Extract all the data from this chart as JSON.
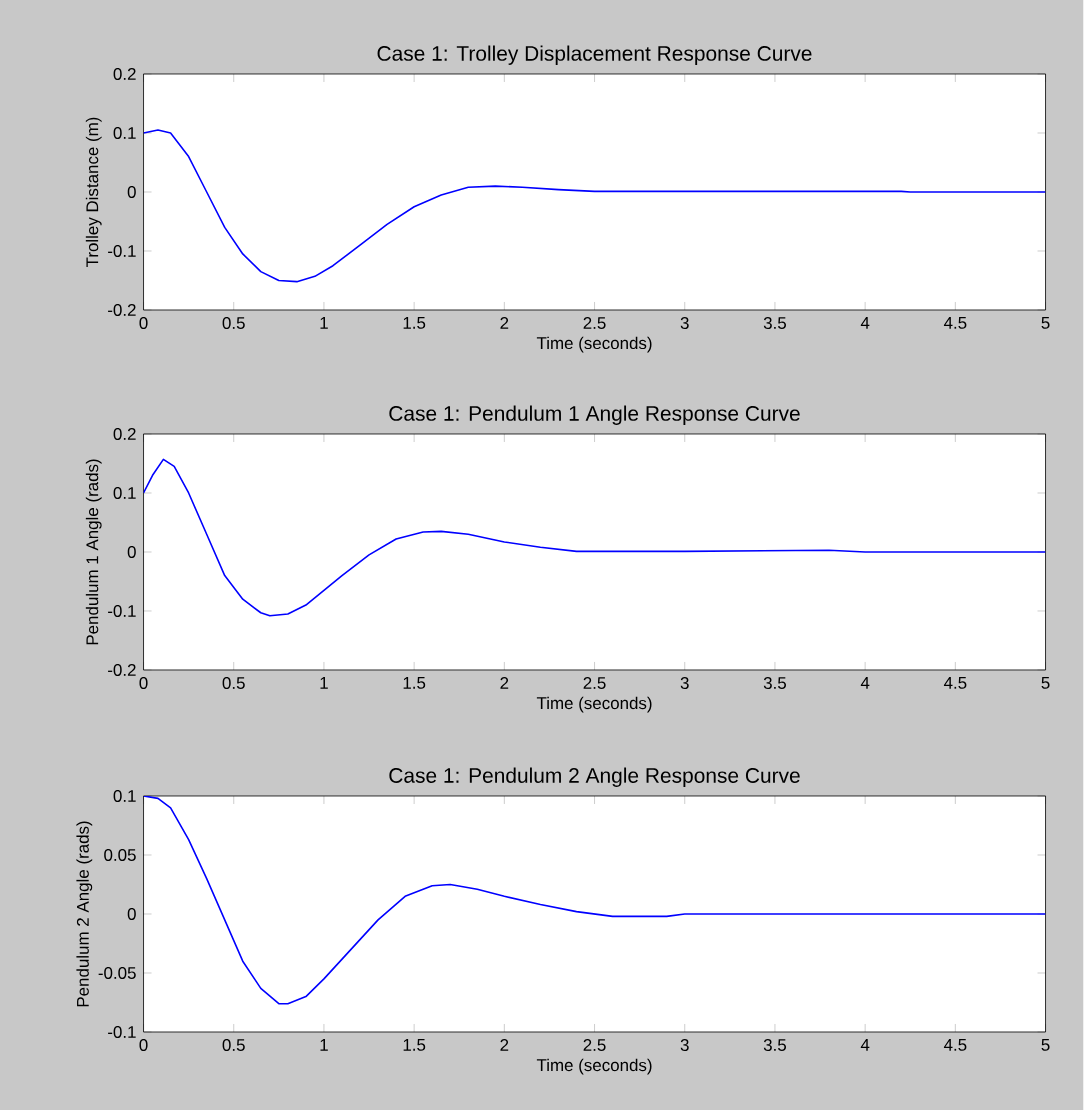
{
  "chart_data": [
    {
      "type": "line",
      "title": "Case 1: Trolley Displacement Response Curve",
      "xlabel": "Time (seconds)",
      "ylabel": "Trolley Distance (m)",
      "xlim": [
        0,
        5
      ],
      "ylim": [
        -0.2,
        0.2
      ],
      "xticks": [
        0,
        0.5,
        1,
        1.5,
        2,
        2.5,
        3,
        3.5,
        4,
        4.5,
        5
      ],
      "yticks": [
        -0.2,
        -0.1,
        0,
        0.1,
        0.2
      ],
      "x": [
        0,
        0.08,
        0.15,
        0.25,
        0.35,
        0.45,
        0.55,
        0.65,
        0.75,
        0.85,
        0.95,
        1.05,
        1.2,
        1.35,
        1.5,
        1.65,
        1.8,
        1.95,
        2.1,
        2.3,
        2.5,
        3,
        3.5,
        4.2,
        4.25,
        5
      ],
      "series": [
        {
          "color": "#0000ff",
          "values": [
            0.1,
            0.105,
            0.1,
            0.06,
            0.0,
            -0.06,
            -0.105,
            -0.135,
            -0.15,
            -0.152,
            -0.143,
            -0.125,
            -0.09,
            -0.055,
            -0.025,
            -0.005,
            0.008,
            0.01,
            0.008,
            0.004,
            0.001,
            0.001,
            0.001,
            0.001,
            0,
            0
          ]
        }
      ]
    },
    {
      "type": "line",
      "title": "Case 1: Pendulum 1 Angle Response Curve",
      "xlabel": "Time (seconds)",
      "ylabel": "Pendulum 1 Angle (rads)",
      "xlim": [
        0,
        5
      ],
      "ylim": [
        -0.2,
        0.2
      ],
      "xticks": [
        0,
        0.5,
        1,
        1.5,
        2,
        2.5,
        3,
        3.5,
        4,
        4.5,
        5
      ],
      "yticks": [
        -0.2,
        -0.1,
        0,
        0.1,
        0.2
      ],
      "x": [
        0,
        0.05,
        0.11,
        0.17,
        0.25,
        0.35,
        0.45,
        0.55,
        0.65,
        0.7,
        0.8,
        0.9,
        1.0,
        1.1,
        1.25,
        1.4,
        1.55,
        1.65,
        1.8,
        2.0,
        2.2,
        2.4,
        3,
        3.8,
        4,
        5
      ],
      "series": [
        {
          "color": "#0000ff",
          "values": [
            0.1,
            0.13,
            0.157,
            0.145,
            0.1,
            0.03,
            -0.04,
            -0.08,
            -0.103,
            -0.108,
            -0.105,
            -0.09,
            -0.065,
            -0.04,
            -0.005,
            0.022,
            0.034,
            0.035,
            0.03,
            0.017,
            0.008,
            0.001,
            0.001,
            0.003,
            0,
            0
          ]
        }
      ]
    },
    {
      "type": "line",
      "title": "Case 1: Pendulum 2 Angle Response Curve",
      "xlabel": "Time (seconds)",
      "ylabel": "Pendulum 2 Angle (rads)",
      "xlim": [
        0,
        5
      ],
      "ylim": [
        -0.1,
        0.1
      ],
      "xticks": [
        0,
        0.5,
        1,
        1.5,
        2,
        2.5,
        3,
        3.5,
        4,
        4.5,
        5
      ],
      "yticks": [
        -0.1,
        -0.05,
        0,
        0.05,
        0.1
      ],
      "x": [
        0,
        0.08,
        0.15,
        0.25,
        0.35,
        0.45,
        0.55,
        0.65,
        0.75,
        0.8,
        0.9,
        1.0,
        1.15,
        1.3,
        1.45,
        1.6,
        1.7,
        1.85,
        2.0,
        2.2,
        2.4,
        2.6,
        2.9,
        3,
        5
      ],
      "series": [
        {
          "color": "#0000ff",
          "values": [
            0.1,
            0.098,
            0.09,
            0.063,
            0.03,
            -0.005,
            -0.04,
            -0.063,
            -0.076,
            -0.076,
            -0.07,
            -0.055,
            -0.03,
            -0.005,
            0.015,
            0.024,
            0.025,
            0.021,
            0.015,
            0.008,
            0.002,
            -0.002,
            -0.002,
            0,
            0
          ]
        }
      ]
    }
  ]
}
